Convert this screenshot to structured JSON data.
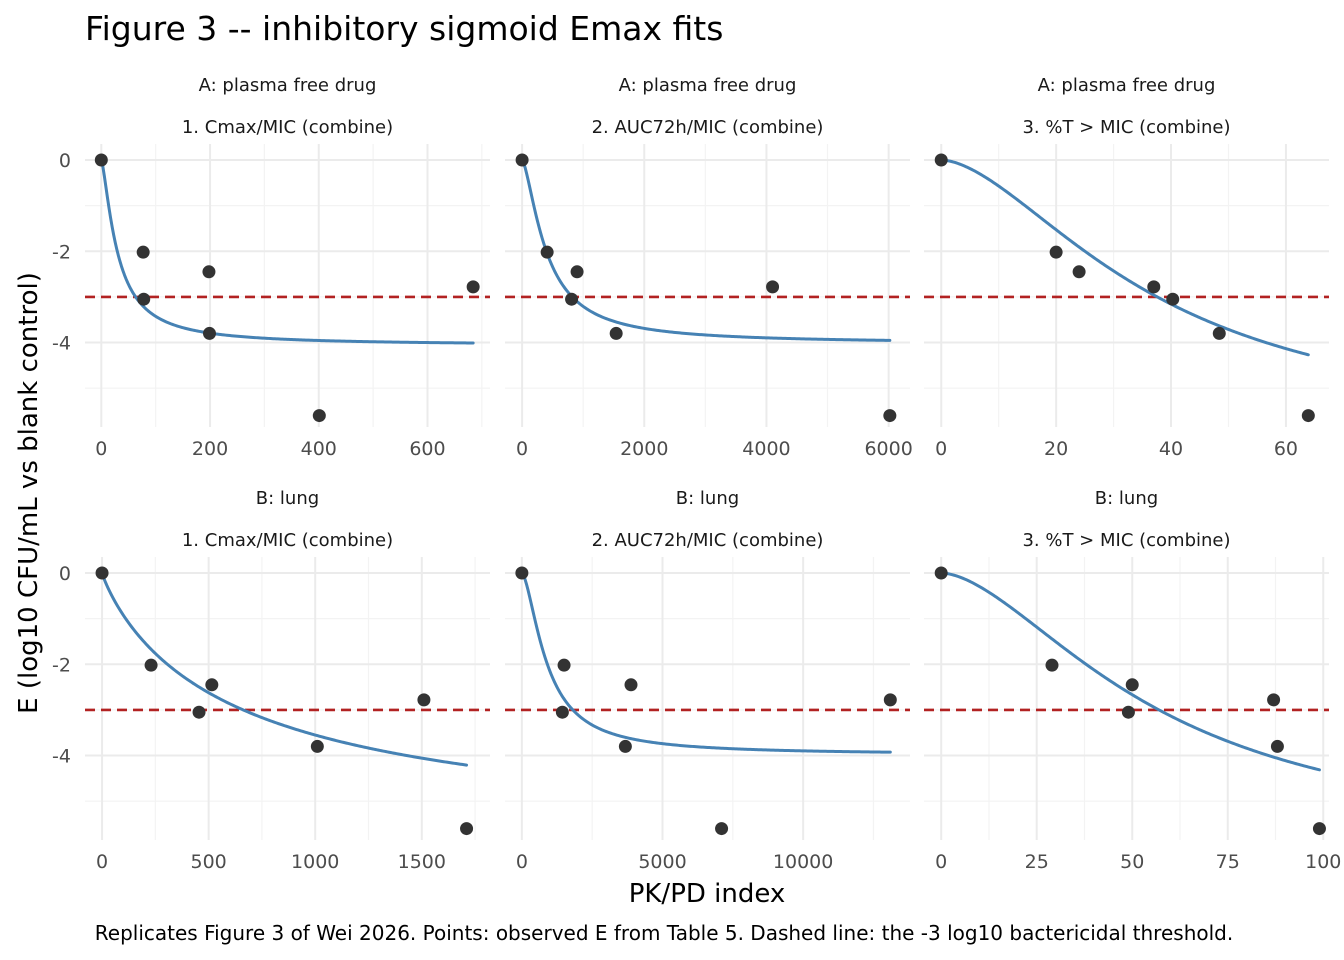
{
  "title": "Figure 3 -- inhibitory sigmoid Emax fits",
  "caption": "Replicates Figure 3 of Wei 2026. Points: observed E from Table 5. Dashed line: the -3 log10 bactericidal threshold.",
  "xlabel": "PK/PD index",
  "ylabel": "E (log10 CFU/mL vs blank control)",
  "colors": {
    "fit": "#4682b4",
    "threshold": "#b22222",
    "points": "#333333"
  },
  "chart_data": [
    {
      "type": "scatter",
      "facet_row": "A: plasma free drug",
      "facet_col": "1. Cmax/MIC (combine)",
      "xlim": [
        -30,
        715
      ],
      "ylim": [
        -5.85,
        0.35
      ],
      "x_ticks": [
        0,
        200,
        400,
        600
      ],
      "y_ticks": [
        0,
        -2,
        -4
      ],
      "threshold": -3,
      "points": {
        "x": [
          0,
          77,
          78,
          198,
          199,
          401,
          684
        ],
        "y": [
          0,
          -2.02,
          -3.05,
          -2.45,
          -3.8,
          -5.6,
          -2.78
        ]
      },
      "fit": {
        "E0": 0,
        "Emax": 4.06,
        "EC50": 30,
        "gamma": 1.4,
        "x_end": 684
      }
    },
    {
      "type": "scatter",
      "facet_row": "A: plasma free drug",
      "facet_col": "2. AUC72h/MIC (combine)",
      "xlim": [
        -280,
        6350
      ],
      "ylim": [
        -5.85,
        0.35
      ],
      "x_ticks": [
        0,
        2000,
        4000,
        6000
      ],
      "y_ticks": [
        0,
        -2,
        -4
      ],
      "threshold": -3,
      "points": {
        "x": [
          0,
          410,
          900,
          810,
          1540,
          4100,
          6020
        ],
        "y": [
          0,
          -2.02,
          -2.45,
          -3.05,
          -3.8,
          -2.78,
          -5.6
        ]
      },
      "fit": {
        "E0": 0,
        "Emax": 4.02,
        "EC50": 400,
        "gamma": 1.5,
        "x_end": 6020
      }
    },
    {
      "type": "scatter",
      "facet_row": "A: plasma free drug",
      "facet_col": "3. %T > MIC (combine)",
      "xlim": [
        -3,
        67.5
      ],
      "ylim": [
        -5.85,
        0.35
      ],
      "x_ticks": [
        0,
        20,
        40,
        60
      ],
      "y_ticks": [
        0,
        -2,
        -4
      ],
      "threshold": -3,
      "points": {
        "x": [
          0,
          20,
          24,
          37,
          40.3,
          48.4,
          63.9
        ],
        "y": [
          0,
          -2.02,
          -2.45,
          -2.78,
          -3.05,
          -3.8,
          -5.6
        ]
      },
      "fit": {
        "E0": 0,
        "Emax": 6,
        "EC50": 37.6,
        "gamma": 1.7,
        "x_end": 63.9
      }
    },
    {
      "type": "scatter",
      "facet_row": "B: lung",
      "facet_col": "1. Cmax/MIC (combine)",
      "xlim": [
        -80,
        1820
      ],
      "ylim": [
        -5.85,
        0.35
      ],
      "x_ticks": [
        0,
        500,
        1000,
        1500
      ],
      "y_ticks": [
        0,
        -2,
        -4
      ],
      "threshold": -3,
      "points": {
        "x": [
          0,
          230,
          455,
          515,
          1010,
          1510,
          1710
        ],
        "y": [
          0,
          -2.02,
          -3.05,
          -2.45,
          -3.8,
          -2.78,
          -5.6
        ]
      },
      "fit": {
        "E0": 0,
        "Emax": 6,
        "EC50": 662,
        "gamma": 0.9,
        "x_end": 1710
      }
    },
    {
      "type": "scatter",
      "facet_row": "B: lung",
      "facet_col": "2. AUC72h/MIC (combine)",
      "xlim": [
        -600,
        13800
      ],
      "ylim": [
        -5.85,
        0.35
      ],
      "x_ticks": [
        0,
        5000,
        10000
      ],
      "y_ticks": [
        0,
        -2,
        -4
      ],
      "threshold": -3,
      "points": {
        "x": [
          0,
          1500,
          1440,
          3880,
          3680,
          7100,
          13100
        ],
        "y": [
          0,
          -2.02,
          -3.05,
          -2.45,
          -3.8,
          -5.6,
          -2.78
        ]
      },
      "fit": {
        "E0": 0,
        "Emax": 3.98,
        "EC50": 900,
        "gamma": 1.6,
        "x_end": 13100
      }
    },
    {
      "type": "scatter",
      "facet_row": "B: lung",
      "facet_col": "3. %T > MIC (combine)",
      "xlim": [
        -4.5,
        101.5
      ],
      "ylim": [
        -5.85,
        0.35
      ],
      "x_ticks": [
        0,
        25,
        50,
        75,
        100
      ],
      "y_ticks": [
        0,
        -2,
        -4
      ],
      "threshold": -3,
      "points": {
        "x": [
          0,
          29,
          49,
          50,
          87,
          88,
          99
        ],
        "y": [
          0,
          -2.02,
          -3.05,
          -2.45,
          -2.78,
          -3.8,
          -5.6
        ]
      },
      "fit": {
        "E0": 0,
        "Emax": 6,
        "EC50": 57,
        "gamma": 1.7,
        "x_end": 99
      }
    }
  ]
}
